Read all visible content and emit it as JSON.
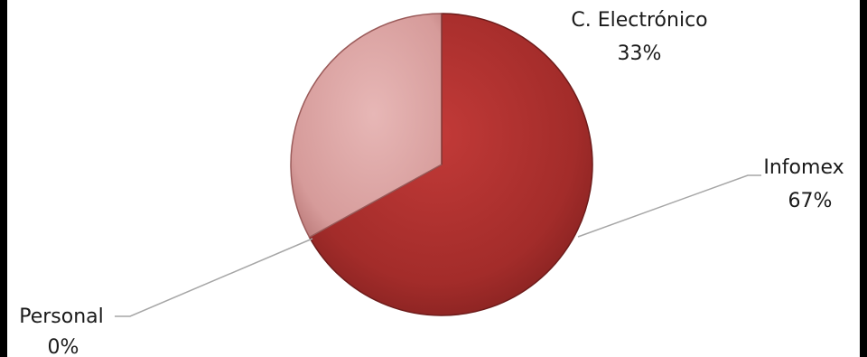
{
  "chart_data": {
    "type": "pie",
    "title": "",
    "slices": [
      {
        "label": "Infomex",
        "value": 67,
        "display": "67%",
        "color": "#a8302e"
      },
      {
        "label": "C. Electrónico",
        "value": 33,
        "display": "33%",
        "color": "#d9a1a0"
      },
      {
        "label": "Personal",
        "value": 0,
        "display": "0%",
        "color": "#c9c9c9"
      }
    ],
    "legend": "none"
  }
}
